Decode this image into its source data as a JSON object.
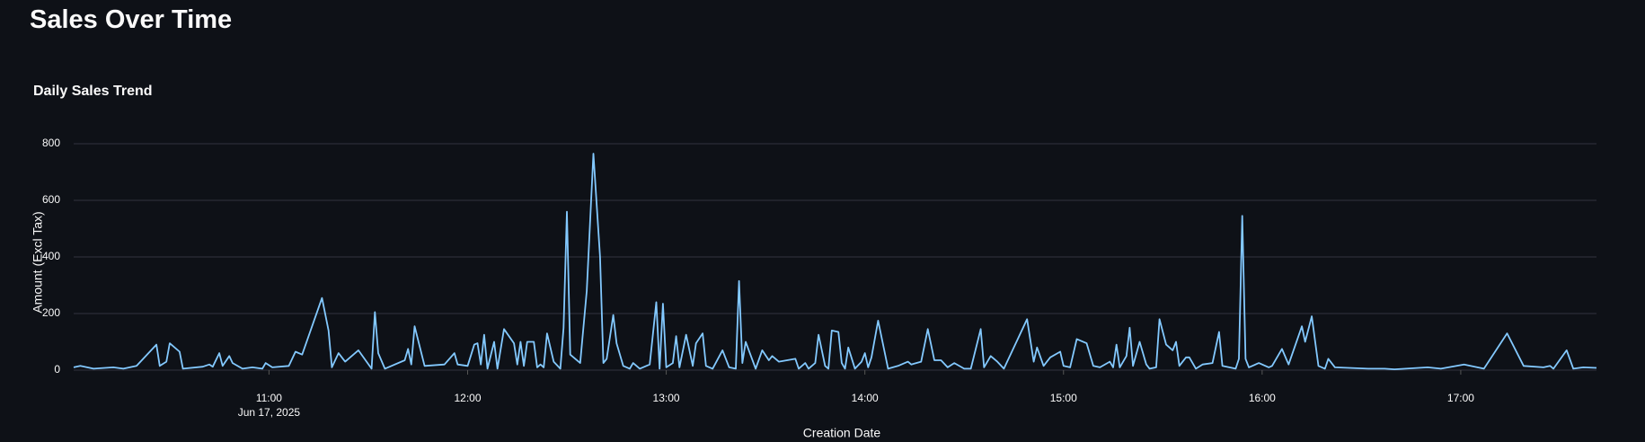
{
  "page_title": "Sales Over Time",
  "chart_data": {
    "type": "line",
    "title": "Daily Sales Trend",
    "x_label": "Creation Date",
    "y_label": "Amount (Excl Tax)",
    "x_date_label": "Jun 17, 2025",
    "xlim": [
      "2025-06-17 10:01",
      "2025-06-17 17:41"
    ],
    "xticks": [
      {
        "value": "2025-06-17 11:00",
        "label": "11:00"
      },
      {
        "value": "2025-06-17 12:00",
        "label": "12:00"
      },
      {
        "value": "2025-06-17 13:00",
        "label": "13:00"
      },
      {
        "value": "2025-06-17 14:00",
        "label": "14:00"
      },
      {
        "value": "2025-06-17 15:00",
        "label": "15:00"
      },
      {
        "value": "2025-06-17 16:00",
        "label": "16:00"
      },
      {
        "value": "2025-06-17 17:00",
        "label": "17:00"
      }
    ],
    "ylim": [
      0,
      800
    ],
    "yticks": [
      0,
      200,
      400,
      600,
      800
    ],
    "grid": true,
    "x": [
      "10:01",
      "10:03",
      "10:07",
      "10:13",
      "10:16",
      "10:20",
      "10:26",
      "10:27",
      "10:29",
      "10:30",
      "10:33",
      "10:34",
      "10:40",
      "10:42",
      "10:43",
      "10:45",
      "10:46",
      "10:48",
      "10:49",
      "10:52",
      "10:55",
      "10:58",
      "10:59",
      "11:01",
      "11:06",
      "11:08",
      "11:10",
      "11:16",
      "11:18",
      "11:19",
      "11:21",
      "11:23",
      "11:27",
      "11:31",
      "11:32",
      "11:33",
      "11:35",
      "11:41",
      "11:42",
      "11:43",
      "11:44",
      "11:47",
      "11:53",
      "11:56",
      "11:57",
      "12:00",
      "12:02",
      "12:03",
      "12:04",
      "12:05",
      "12:06",
      "12:08",
      "12:09",
      "12:11",
      "12:14",
      "12:15",
      "12:16",
      "12:17",
      "12:18",
      "12:20",
      "12:21",
      "12:22",
      "12:23",
      "12:24",
      "12:26",
      "12:28",
      "12:29",
      "12:30",
      "12:31",
      "12:34",
      "12:36",
      "12:38",
      "12:40",
      "12:41",
      "12:42",
      "12:44",
      "12:45",
      "12:47",
      "12:49",
      "12:50",
      "12:52",
      "12:55",
      "12:57",
      "12:58",
      "12:59",
      "13:00",
      "13:02",
      "13:03",
      "13:04",
      "13:06",
      "13:08",
      "13:09",
      "13:11",
      "13:12",
      "13:14",
      "13:17",
      "13:19",
      "13:21",
      "13:22",
      "13:23",
      "13:24",
      "13:27",
      "13:29",
      "13:31",
      "13:32",
      "13:34",
      "13:39",
      "13:40",
      "13:42",
      "13:43",
      "13:45",
      "13:46",
      "13:48",
      "13:49",
      "13:50",
      "13:52",
      "13:53",
      "13:54",
      "13:55",
      "13:57",
      "13:59",
      "14:00",
      "14:01",
      "14:02",
      "14:04",
      "14:07",
      "14:10",
      "14:13",
      "14:14",
      "14:17",
      "14:19",
      "14:21",
      "14:23",
      "14:25",
      "14:27",
      "14:30",
      "14:32",
      "14:35",
      "14:36",
      "14:38",
      "14:40",
      "14:42",
      "14:49",
      "14:51",
      "14:52",
      "14:54",
      "14:56",
      "14:59",
      "15:00",
      "15:02",
      "15:04",
      "15:07",
      "15:09",
      "15:11",
      "15:14",
      "15:15",
      "15:16",
      "15:17",
      "15:19",
      "15:20",
      "15:21",
      "15:23",
      "15:25",
      "15:26",
      "15:28",
      "15:29",
      "15:31",
      "15:33",
      "15:34",
      "15:35",
      "15:37",
      "15:38",
      "15:40",
      "15:42",
      "15:45",
      "15:47",
      "15:48",
      "15:52",
      "15:53",
      "15:54",
      "15:55",
      "15:56",
      "15:59",
      "16:02",
      "16:03",
      "16:06",
      "16:08",
      "16:12",
      "16:13",
      "16:15",
      "16:17",
      "16:19",
      "16:20",
      "16:22",
      "16:32",
      "16:37",
      "16:40",
      "16:50",
      "16:54",
      "17:01",
      "17:07",
      "17:14",
      "17:19",
      "17:25",
      "17:27",
      "17:28",
      "17:32",
      "17:34",
      "17:37",
      "17:41"
    ],
    "series": [
      {
        "name": "Amount (Excl Tax)",
        "color": "#83c9ff",
        "values": [
          10,
          15,
          5,
          10,
          5,
          15,
          90,
          15,
          30,
          95,
          65,
          5,
          12,
          20,
          12,
          60,
          15,
          50,
          25,
          5,
          10,
          5,
          25,
          10,
          15,
          65,
          55,
          255,
          140,
          10,
          60,
          30,
          70,
          5,
          205,
          60,
          5,
          35,
          75,
          20,
          155,
          15,
          20,
          60,
          20,
          15,
          90,
          95,
          20,
          125,
          5,
          100,
          5,
          145,
          95,
          20,
          100,
          15,
          100,
          100,
          10,
          20,
          10,
          130,
          30,
          5,
          150,
          560,
          55,
          25,
          280,
          765,
          400,
          25,
          40,
          195,
          95,
          15,
          5,
          25,
          5,
          20,
          240,
          5,
          235,
          10,
          25,
          120,
          10,
          125,
          15,
          95,
          130,
          15,
          5,
          70,
          10,
          5,
          315,
          25,
          100,
          5,
          70,
          35,
          50,
          30,
          40,
          5,
          25,
          5,
          25,
          125,
          15,
          5,
          140,
          135,
          25,
          5,
          80,
          5,
          30,
          60,
          10,
          45,
          175,
          5,
          15,
          30,
          20,
          30,
          145,
          35,
          35,
          10,
          25,
          5,
          5,
          145,
          10,
          50,
          30,
          5,
          180,
          30,
          80,
          15,
          45,
          65,
          15,
          10,
          110,
          95,
          15,
          10,
          30,
          10,
          90,
          10,
          50,
          150,
          15,
          100,
          20,
          5,
          10,
          180,
          90,
          70,
          100,
          15,
          45,
          45,
          5,
          20,
          25,
          135,
          15,
          5,
          40,
          545,
          40,
          10,
          25,
          10,
          15,
          75,
          20,
          155,
          100,
          190,
          15,
          5,
          40,
          10,
          5,
          5,
          3,
          10,
          5,
          20,
          5,
          130,
          15,
          10,
          15,
          5,
          70,
          5,
          10,
          8
        ]
      }
    ]
  }
}
